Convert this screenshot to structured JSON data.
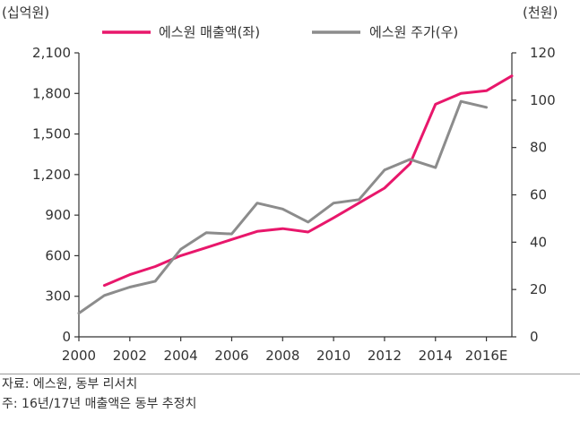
{
  "chart_data": {
    "type": "line",
    "left_unit": "(십억원)",
    "right_unit": "(천원)",
    "x_labels": [
      "2000",
      "2002",
      "2004",
      "2006",
      "2008",
      "2010",
      "2012",
      "2014",
      "2016E"
    ],
    "left_ticks": [
      "0",
      "300",
      "600",
      "900",
      "1,200",
      "1,500",
      "1,800",
      "2,100"
    ],
    "right_ticks": [
      "0",
      "20",
      "40",
      "60",
      "80",
      "100",
      "120"
    ],
    "ylim_left": [
      0,
      2100
    ],
    "ylim_right": [
      0,
      120
    ],
    "legend_position": "top",
    "grid": false,
    "series": [
      {
        "name": "에스원 매출액(좌)",
        "axis": "left",
        "color": "#e8176b",
        "x": [
          2001,
          2002,
          2003,
          2004,
          2005,
          2006,
          2007,
          2008,
          2009,
          2010,
          2011,
          2012,
          2013,
          2014,
          2015,
          2016,
          2017
        ],
        "values": [
          380,
          460,
          520,
          600,
          660,
          720,
          780,
          800,
          775,
          880,
          990,
          1100,
          1280,
          1720,
          1800,
          1820,
          1930
        ]
      },
      {
        "name": "에스원 주가(우)",
        "axis": "right",
        "color": "#8c8c8c",
        "x": [
          2000,
          2001,
          2002,
          2003,
          2004,
          2005,
          2006,
          2007,
          2008,
          2009,
          2010,
          2011,
          2012,
          2013,
          2014,
          2015,
          2016
        ],
        "values": [
          10,
          17.5,
          21,
          23.5,
          37,
          44,
          43.5,
          56.5,
          54,
          48.5,
          56.5,
          58,
          70.5,
          75,
          71.5,
          99.5,
          97
        ]
      }
    ]
  },
  "notes": {
    "source": "자료: 에스원, 동부 리서치",
    "footnote": "주: 16년/17년 매출액은 동부 추정치"
  }
}
